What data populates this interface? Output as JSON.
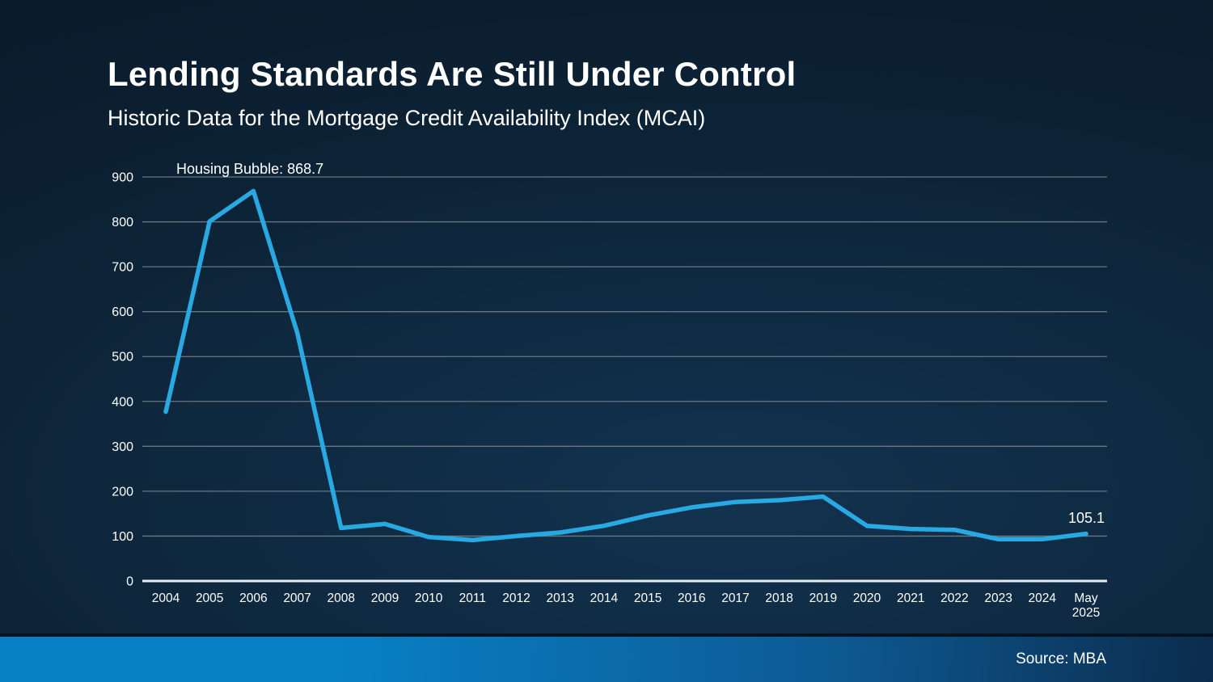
{
  "slide": {
    "title": "Lending Standards Are Still Under Control",
    "subtitle": "Historic Data for the Mortgage Credit Availability Index (MCAI)",
    "footer": {
      "source_label": "Source: MBA"
    }
  },
  "colors": {
    "line": "#29a9e2",
    "gridline": "#6b7680",
    "zero_axis": "#e6edf2",
    "label_text": "#ffffff",
    "footer_left_blue": "#0880c6",
    "footer_right_navy": "#0b2c4c"
  },
  "chart_data": {
    "type": "line",
    "title": "Historic Data for the Mortgage Credit Availability Index (MCAI)",
    "series_name": "Mortgage Credit Availability Index (MCAI)",
    "categories": [
      "2004",
      "2005",
      "2006",
      "2007",
      "2008",
      "2009",
      "2010",
      "2011",
      "2012",
      "2013",
      "2014",
      "2015",
      "2016",
      "2017",
      "2018",
      "2019",
      "2020",
      "2021",
      "2022",
      "2023",
      "2024",
      "May 2025"
    ],
    "values": [
      377,
      801,
      868.7,
      553,
      118,
      127,
      98,
      91,
      100,
      108,
      123,
      146,
      164,
      176,
      180,
      188,
      123,
      116,
      114,
      93,
      93,
      105.1
    ],
    "xlabel": "",
    "ylabel": "",
    "ylim": [
      0,
      900
    ],
    "yticks": [
      0,
      100,
      200,
      300,
      400,
      500,
      600,
      700,
      800,
      900
    ],
    "grid": true,
    "legend": false,
    "annotations": [
      {
        "id": "peak",
        "text": "Housing Bubble: 868.7"
      },
      {
        "id": "latest",
        "text": "105.1"
      }
    ]
  }
}
